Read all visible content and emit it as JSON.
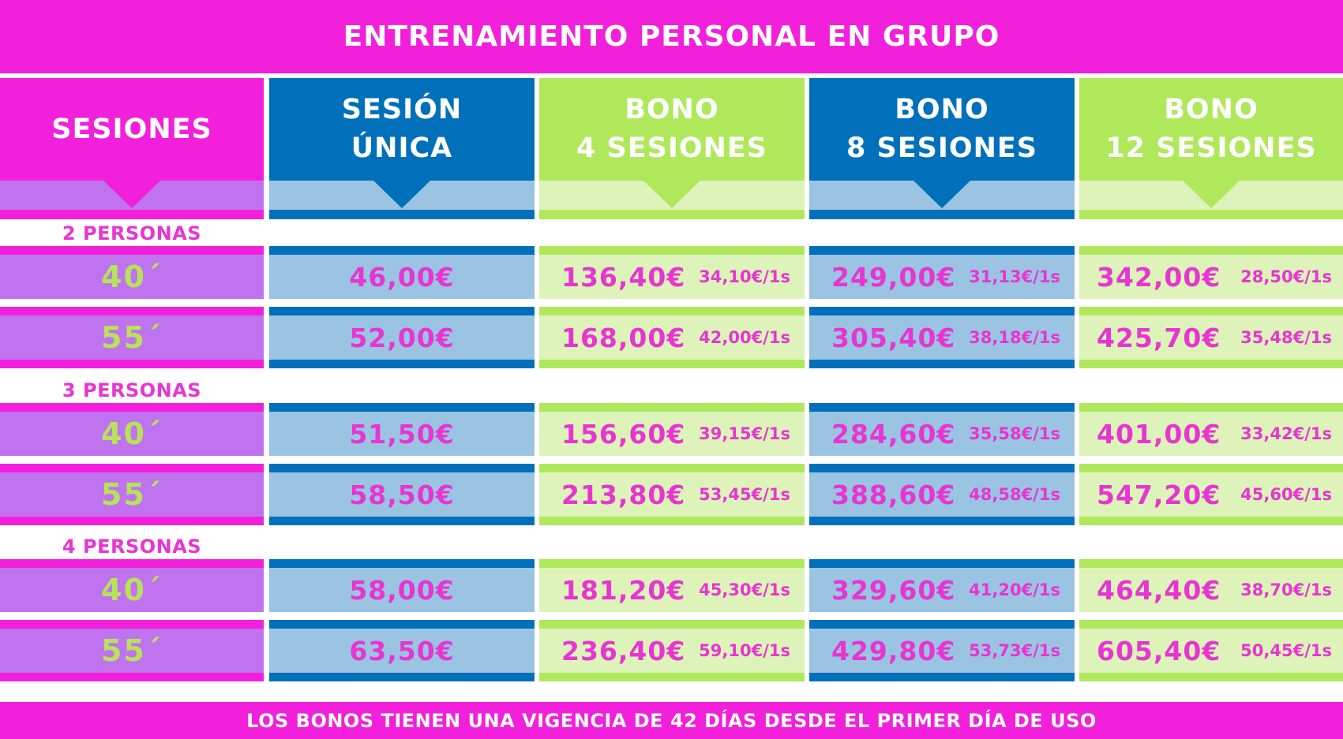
{
  "title": "ENTRENAMIENTO PERSONAL EN GRUPO",
  "footer": "LOS BONOS TIENEN UNA VIGENCIA DE 42 DÍAS DESDE EL PRIMER DÍA DE USO",
  "colors": {
    "magenta": "#f21fdb",
    "violet": "#c073ee",
    "blue": "#0070bb",
    "light_blue": "#9bc4e3",
    "green": "#afe85b",
    "light_green": "#ddf3b9",
    "price_text": "#e735d2",
    "session_text": "#b7e25a"
  },
  "columns": {
    "sessions": {
      "label": "SESIONES"
    },
    "single": {
      "line1": "SESIÓN",
      "line2": "ÚNICA"
    },
    "bono4": {
      "line1": "BONO",
      "line2": "4 SESIONES"
    },
    "bono8": {
      "line1": "BONO",
      "line2": "8 SESIONES"
    },
    "bono12": {
      "line1": "BONO",
      "line2": "12 SESIONES"
    }
  },
  "groups": [
    {
      "label": "2 PERSONAS",
      "rows": [
        {
          "duration": "40´",
          "single": "46,00€",
          "bono4": {
            "total": "136,40€",
            "per": "34,10€/1s"
          },
          "bono8": {
            "total": "249,00€",
            "per": "31,13€/1s"
          },
          "bono12": {
            "total": "342,00€",
            "per": "28,50€/1s"
          }
        },
        {
          "duration": "55´",
          "single": "52,00€",
          "bono4": {
            "total": "168,00€",
            "per": "42,00€/1s"
          },
          "bono8": {
            "total": "305,40€",
            "per": "38,18€/1s"
          },
          "bono12": {
            "total": "425,70€",
            "per": "35,48€/1s"
          }
        }
      ]
    },
    {
      "label": "3 PERSONAS",
      "rows": [
        {
          "duration": "40´",
          "single": "51,50€",
          "bono4": {
            "total": "156,60€",
            "per": "39,15€/1s"
          },
          "bono8": {
            "total": "284,60€",
            "per": "35,58€/1s"
          },
          "bono12": {
            "total": "401,00€",
            "per": "33,42€/1s"
          }
        },
        {
          "duration": "55´",
          "single": "58,50€",
          "bono4": {
            "total": "213,80€",
            "per": "53,45€/1s"
          },
          "bono8": {
            "total": "388,60€",
            "per": "48,58€/1s"
          },
          "bono12": {
            "total": "547,20€",
            "per": "45,60€/1s"
          }
        }
      ]
    },
    {
      "label": "4 PERSONAS",
      "rows": [
        {
          "duration": "40´",
          "single": "58,00€",
          "bono4": {
            "total": "181,20€",
            "per": "45,30€/1s"
          },
          "bono8": {
            "total": "329,60€",
            "per": "41,20€/1s"
          },
          "bono12": {
            "total": "464,40€",
            "per": "38,70€/1s"
          }
        },
        {
          "duration": "55´",
          "single": "63,50€",
          "bono4": {
            "total": "236,40€",
            "per": "59,10€/1s"
          },
          "bono8": {
            "total": "429,80€",
            "per": "53,73€/1s"
          },
          "bono12": {
            "total": "605,40€",
            "per": "50,45€/1s"
          }
        }
      ]
    }
  ]
}
